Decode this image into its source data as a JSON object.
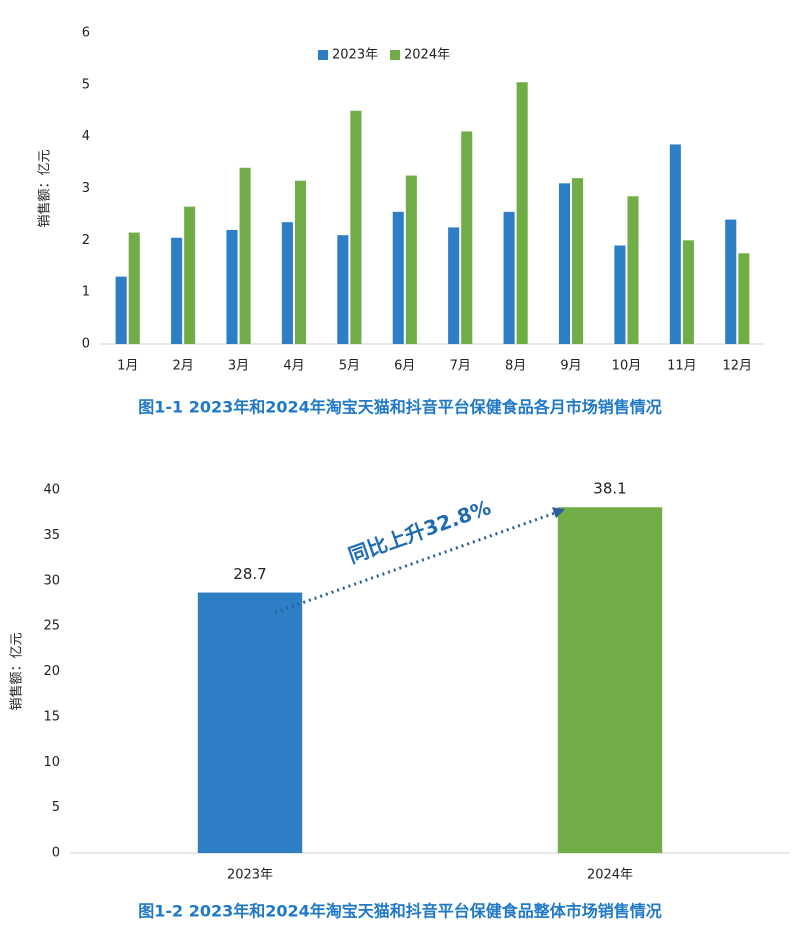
{
  "chart_data": [
    {
      "type": "bar",
      "y_label": "销售额：亿元",
      "categories": [
        "1月",
        "2月",
        "3月",
        "4月",
        "5月",
        "6月",
        "7月",
        "8月",
        "9月",
        "10月",
        "11月",
        "12月"
      ],
      "series": [
        {
          "name": "2023年",
          "color": "#2e7ec6",
          "values": [
            1.3,
            2.05,
            2.2,
            2.35,
            2.1,
            2.55,
            2.25,
            2.55,
            3.1,
            1.9,
            3.85,
            2.4
          ]
        },
        {
          "name": "2024年",
          "color": "#71ad47",
          "values": [
            2.15,
            2.65,
            3.4,
            3.15,
            4.5,
            3.25,
            4.1,
            5.05,
            3.2,
            2.85,
            2.0,
            1.75
          ]
        }
      ],
      "ylim": [
        0,
        6
      ],
      "yticks": [
        0,
        1,
        2,
        3,
        4,
        5,
        6
      ],
      "legend": "top",
      "grid": false,
      "title": "图1-1  2023年和2024年淘宝天猫和抖音平台保健食品各月市场销售情况"
    },
    {
      "type": "bar",
      "y_label": "销售额：亿元",
      "categories": [
        "2023年",
        "2024年"
      ],
      "values": [
        28.7,
        38.1
      ],
      "colors": [
        "#2e7ec6",
        "#71ad47"
      ],
      "ylim": [
        0,
        40
      ],
      "yticks": [
        0,
        5,
        10,
        15,
        20,
        25,
        30,
        35,
        40
      ],
      "grid": false,
      "annotation": "同比上升32.8%",
      "title": "图1-2  2023年和2024年淘宝天猫和抖音平台保健食品整体市场销售情况"
    }
  ]
}
